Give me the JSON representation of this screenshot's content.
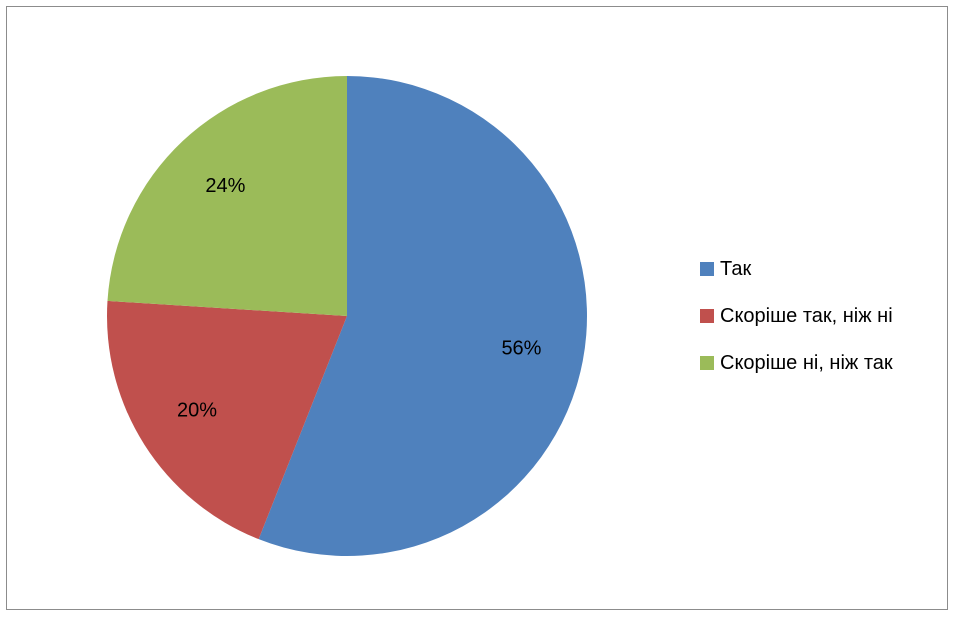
{
  "chart_data": {
    "type": "pie",
    "title": "",
    "legend_placement": "right",
    "series": [
      {
        "values": [
          56,
          20,
          24
        ],
        "labels": [
          "Так",
          "Скоріше так, ніж ні",
          "Скоріше ні, ніж так"
        ],
        "data_labels": [
          "56%",
          "20%",
          "24%"
        ],
        "colors": [
          "#4f81bd",
          "#c0504d",
          "#9bbb59"
        ]
      }
    ]
  }
}
